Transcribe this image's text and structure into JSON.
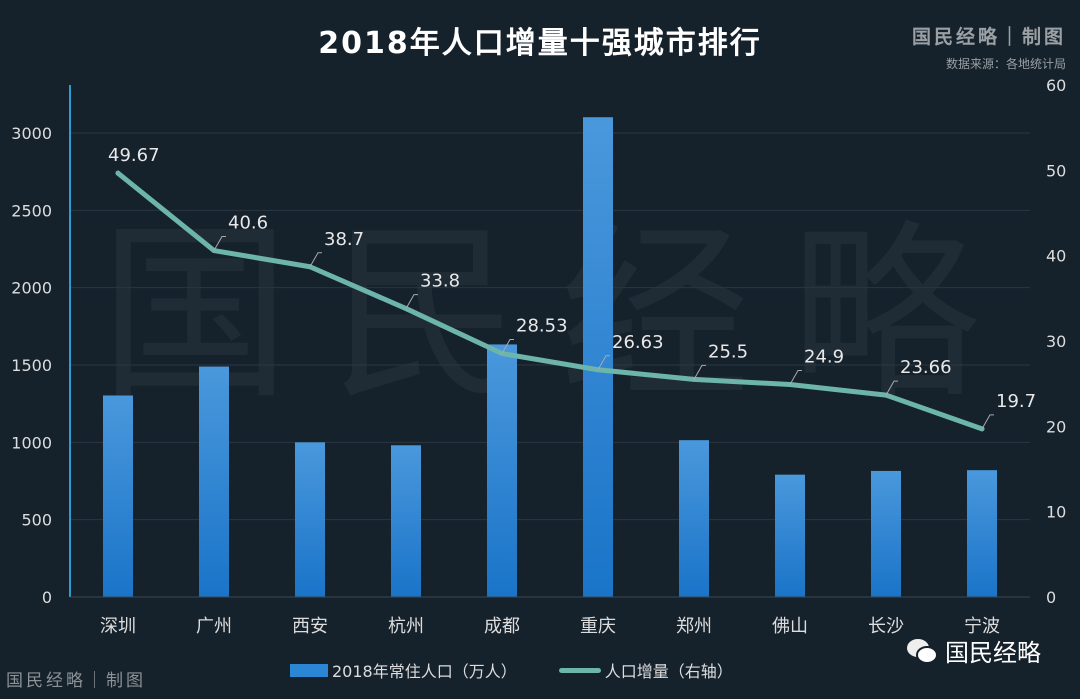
{
  "header": {
    "title": "2018年人口增量十强城市排行",
    "brand": "国民经略｜制图",
    "source": "数据来源：各地统计局"
  },
  "footer": {
    "brand": "国民经略｜制图",
    "wechat": "国民经略"
  },
  "watermark": "国民经略",
  "colors": {
    "bar": "#2b86d6",
    "line": "#6db4ab",
    "background": "#15212b",
    "axis": "#2e9bd0"
  },
  "chart_data": {
    "type": "bar+line",
    "title": "2018年人口增量十强城市排行",
    "categories": [
      "深圳",
      "广州",
      "西安",
      "杭州",
      "成都",
      "重庆",
      "郑州",
      "佛山",
      "长沙",
      "宁波"
    ],
    "series": [
      {
        "name": "2018年常住人口（万人）",
        "type": "bar",
        "axis": "left",
        "values": [
          1303,
          1490,
          1000,
          981,
          1633,
          3102,
          1014,
          791,
          815,
          820
        ]
      },
      {
        "name": "人口增量（右轴）",
        "type": "line",
        "axis": "right",
        "values": [
          49.67,
          40.6,
          38.7,
          33.8,
          28.53,
          26.63,
          25.5,
          24.9,
          23.66,
          19.7
        ],
        "labels": [
          "49.67",
          "40.6",
          "38.7",
          "33.8",
          "28.53",
          "26.63",
          "25.5",
          "24.9",
          "23.66",
          "19.7"
        ]
      }
    ],
    "y_left": {
      "ylim": [
        0,
        3300
      ],
      "ticks": [
        "0",
        "500",
        "1000",
        "1500",
        "2000",
        "2500",
        "3000"
      ]
    },
    "y_right": {
      "ylim": [
        0,
        60
      ],
      "ticks": [
        "0",
        "10",
        "20",
        "30",
        "40",
        "50",
        "60"
      ]
    },
    "grid": true,
    "legend": "bottom"
  }
}
